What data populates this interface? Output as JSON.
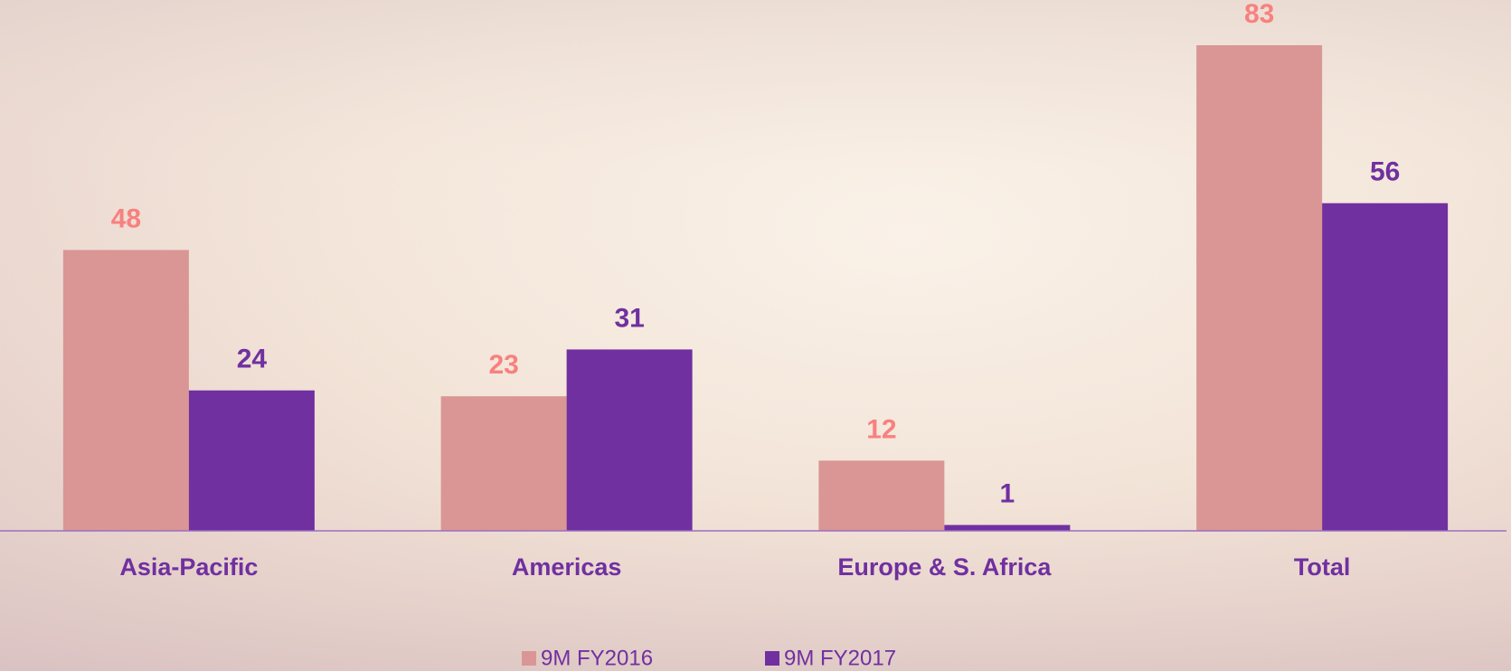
{
  "chart_data": {
    "type": "bar",
    "categories": [
      "Asia-Pacific",
      "Americas",
      "Europe & S. Africa",
      "Total"
    ],
    "series": [
      {
        "name": "9M FY2016",
        "color": "#d99694",
        "label_color": "#f7817f",
        "values": [
          48,
          23,
          12,
          83
        ]
      },
      {
        "name": "9M FY2017",
        "color": "#7030a0",
        "label_color": "#7030a0",
        "values": [
          24,
          31,
          1,
          56
        ]
      }
    ],
    "category_color": "#7030a0",
    "legend": "bottom"
  }
}
